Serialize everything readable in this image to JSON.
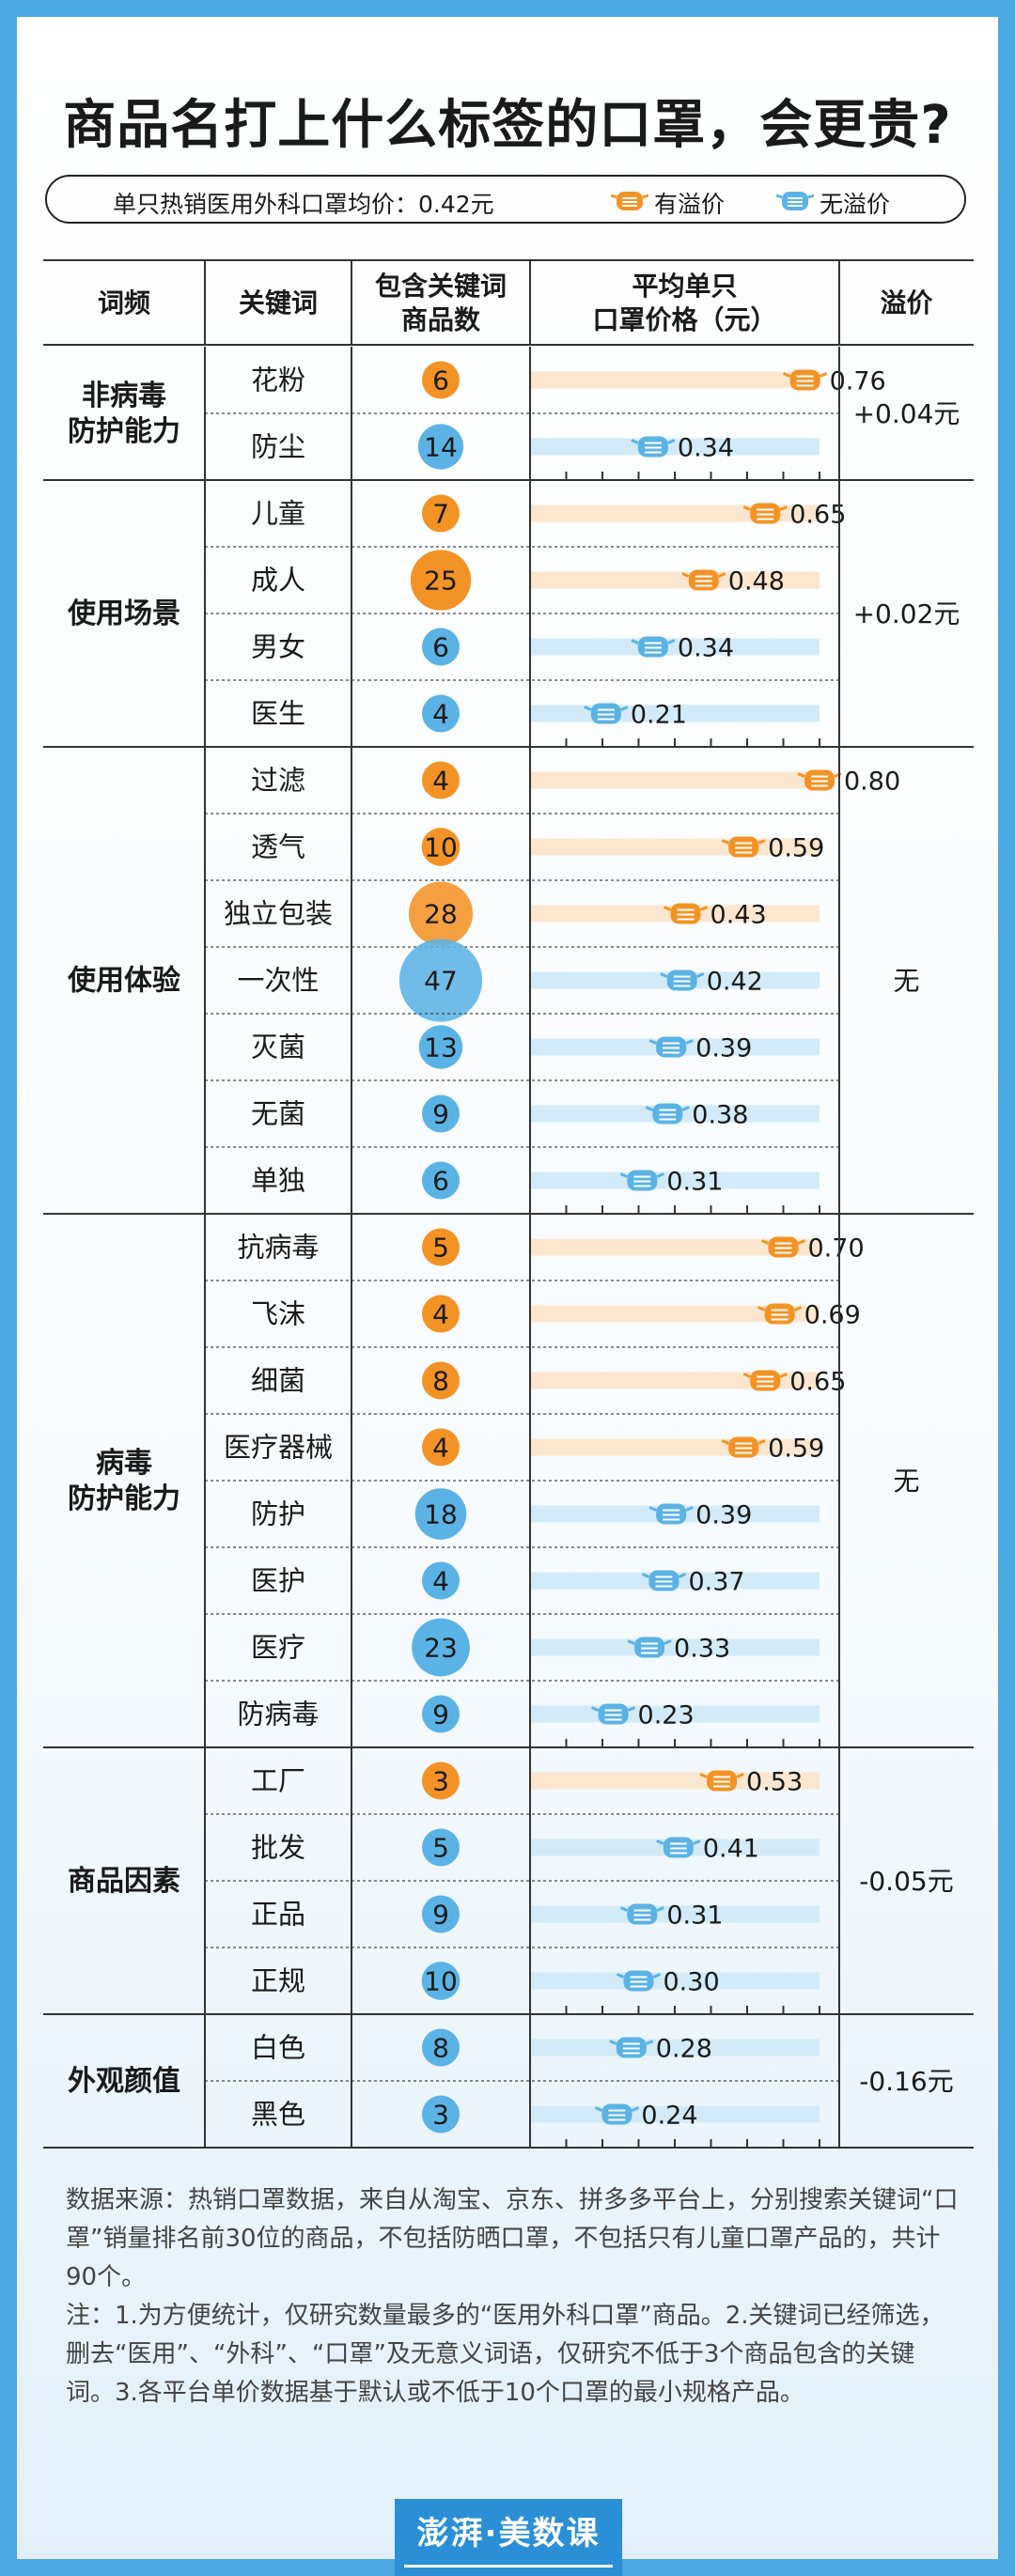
{
  "title": "商品名打上什么标签的口罩，会更贵?",
  "info_bar": {
    "avg_text": "单只热销医用外科口罩均价：0.42元",
    "legend_premium": "有溢价",
    "legend_no_premium": "无溢价"
  },
  "colors": {
    "premium": "#f39325",
    "no_premium": "#5bb3e5",
    "premium_track": "#fbe7cf",
    "no_premium_track": "#d3ebf8",
    "background": "#4aa8e0"
  },
  "chart_data": {
    "type": "table",
    "title": "商品名打上什么标签的口罩，会更贵?",
    "columns": [
      "词频",
      "关键词",
      "包含关键词商品数",
      "平均单只口罩价格（元）",
      "溢价"
    ],
    "header_labels": {
      "category": "词频",
      "keyword": "关键词",
      "count_line1": "包含关键词",
      "count_line2": "商品数",
      "price_line1": "平均单只",
      "price_line2": "口罩价格（元）",
      "premium": "溢价"
    },
    "price_axis_range": [
      0,
      0.8
    ],
    "groups": [
      {
        "category": "非病毒\n防护能力",
        "premium": "+0.04元",
        "rows": [
          {
            "keyword": "花粉",
            "count": 6,
            "price": 0.76,
            "price_label": "0.76",
            "has_premium": true
          },
          {
            "keyword": "防尘",
            "count": 14,
            "price": 0.34,
            "price_label": "0.34",
            "has_premium": false
          }
        ]
      },
      {
        "category": "使用场景",
        "premium": "+0.02元",
        "rows": [
          {
            "keyword": "儿童",
            "count": 7,
            "price": 0.65,
            "price_label": "0.65",
            "has_premium": true
          },
          {
            "keyword": "成人",
            "count": 25,
            "price": 0.48,
            "price_label": "0.48",
            "has_premium": true
          },
          {
            "keyword": "男女",
            "count": 6,
            "price": 0.34,
            "price_label": "0.34",
            "has_premium": false
          },
          {
            "keyword": "医生",
            "count": 4,
            "price": 0.21,
            "price_label": "0.21",
            "has_premium": false
          }
        ]
      },
      {
        "category": "使用体验",
        "premium": "无",
        "rows": [
          {
            "keyword": "过滤",
            "count": 4,
            "price": 0.8,
            "price_label": "0.80",
            "has_premium": true
          },
          {
            "keyword": "透气",
            "count": 10,
            "price": 0.59,
            "price_label": "0.59",
            "has_premium": true
          },
          {
            "keyword": "独立包装",
            "count": 28,
            "price": 0.43,
            "price_label": "0.43",
            "has_premium": true
          },
          {
            "keyword": "一次性",
            "count": 47,
            "price": 0.42,
            "price_label": "0.42",
            "has_premium": false
          },
          {
            "keyword": "灭菌",
            "count": 13,
            "price": 0.39,
            "price_label": "0.39",
            "has_premium": false
          },
          {
            "keyword": "无菌",
            "count": 9,
            "price": 0.38,
            "price_label": "0.38",
            "has_premium": false
          },
          {
            "keyword": "单独",
            "count": 6,
            "price": 0.31,
            "price_label": "0.31",
            "has_premium": false
          }
        ]
      },
      {
        "category": "病毒\n防护能力",
        "premium": "无",
        "rows": [
          {
            "keyword": "抗病毒",
            "count": 5,
            "price": 0.7,
            "price_label": "0.70",
            "has_premium": true
          },
          {
            "keyword": "飞沫",
            "count": 4,
            "price": 0.69,
            "price_label": "0.69",
            "has_premium": true
          },
          {
            "keyword": "细菌",
            "count": 8,
            "price": 0.65,
            "price_label": "0.65",
            "has_premium": true
          },
          {
            "keyword": "医疗器械",
            "count": 4,
            "price": 0.59,
            "price_label": "0.59",
            "has_premium": true
          },
          {
            "keyword": "防护",
            "count": 18,
            "price": 0.39,
            "price_label": "0.39",
            "has_premium": false
          },
          {
            "keyword": "医护",
            "count": 4,
            "price": 0.37,
            "price_label": "0.37",
            "has_premium": false
          },
          {
            "keyword": "医疗",
            "count": 23,
            "price": 0.33,
            "price_label": "0.33",
            "has_premium": false
          },
          {
            "keyword": "防病毒",
            "count": 9,
            "price": 0.23,
            "price_label": "0.23",
            "has_premium": false
          }
        ]
      },
      {
        "category": "商品因素",
        "premium": "-0.05元",
        "rows": [
          {
            "keyword": "工厂",
            "count": 3,
            "price": 0.53,
            "price_label": "0.53",
            "has_premium": true
          },
          {
            "keyword": "批发",
            "count": 5,
            "price": 0.41,
            "price_label": "0.41",
            "has_premium": false
          },
          {
            "keyword": "正品",
            "count": 9,
            "price": 0.31,
            "price_label": "0.31",
            "has_premium": false
          },
          {
            "keyword": "正规",
            "count": 10,
            "price": 0.3,
            "price_label": "0.30",
            "has_premium": false
          }
        ]
      },
      {
        "category": "外观颜值",
        "premium": "-0.16元",
        "rows": [
          {
            "keyword": "白色",
            "count": 8,
            "price": 0.28,
            "price_label": "0.28",
            "has_premium": false
          },
          {
            "keyword": "黑色",
            "count": 3,
            "price": 0.24,
            "price_label": "0.24",
            "has_premium": false
          }
        ]
      }
    ]
  },
  "source_note": {
    "line1": "数据来源：热销口罩数据，来自从淘宝、京东、拼多多平台上，分别搜索关键词“口罩”销量排名前30位的商品，不包括防晒口罩，不包括只有儿童口罩产品的，共计90个。",
    "line2": "注：1.为方便统计，仅研究数量最多的“医用外科口罩”商品。2.关键词已经筛选，删去“医用”、“外科”、“口罩”及无意义词语，仅研究不低于3个商品包含的关键词。3.各平台单价数据基于默认或不低于10个口罩的最小规格产品。"
  },
  "logo": "澎湃·美数课"
}
